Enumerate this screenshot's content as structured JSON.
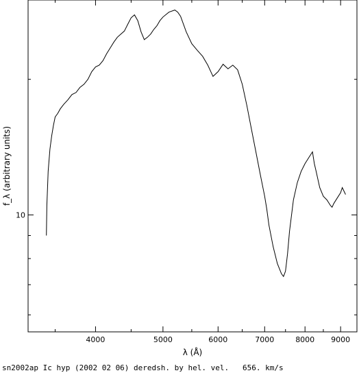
{
  "chart_data": {
    "type": "line",
    "title": "",
    "caption": "sn2002ap Ic hyp (2002 02 06) deredsh. by hel. vel.   656. km/s",
    "xlabel": "λ (Å)",
    "ylabel": "f_λ (arbitrary units)",
    "x_scale": "log",
    "y_scale": "log",
    "xlim": [
      3200,
      9500
    ],
    "ylim": [
      5.5,
      30
    ],
    "x_ticks": [
      {
        "value": 4000,
        "label": "4000"
      },
      {
        "value": 5000,
        "label": "5000"
      },
      {
        "value": 6000,
        "label": "6000"
      },
      {
        "value": 7000,
        "label": "7000"
      },
      {
        "value": 8000,
        "label": "8000"
      },
      {
        "value": 9000,
        "label": "9000"
      }
    ],
    "y_ticks": [
      {
        "value": 10,
        "label": "10"
      }
    ],
    "series": [
      {
        "name": "",
        "color": "#000000",
        "x": [
          3400,
          3405,
          3420,
          3440,
          3460,
          3480,
          3500,
          3530,
          3560,
          3600,
          3650,
          3700,
          3750,
          3800,
          3850,
          3900,
          3950,
          4000,
          4050,
          4100,
          4150,
          4200,
          4250,
          4300,
          4350,
          4400,
          4450,
          4500,
          4550,
          4600,
          4650,
          4700,
          4750,
          4800,
          4850,
          4900,
          4950,
          5000,
          5100,
          5200,
          5250,
          5300,
          5400,
          5500,
          5600,
          5700,
          5800,
          5900,
          6000,
          6100,
          6200,
          6300,
          6400,
          6500,
          6600,
          6700,
          6800,
          6900,
          7000,
          7050,
          7100,
          7200,
          7300,
          7400,
          7450,
          7500,
          7550,
          7600,
          7700,
          7800,
          7900,
          8000,
          8100,
          8200,
          8250,
          8300,
          8400,
          8500,
          8600,
          8700,
          8750,
          8800,
          8900,
          9000,
          9050,
          9100,
          9150
        ],
        "y": [
          9.0,
          10.5,
          12.5,
          14.0,
          15.0,
          15.8,
          16.5,
          16.8,
          17.2,
          17.6,
          18.0,
          18.5,
          18.7,
          19.2,
          19.5,
          20.0,
          20.8,
          21.3,
          21.5,
          22.0,
          22.8,
          23.5,
          24.2,
          24.8,
          25.2,
          25.6,
          26.5,
          27.4,
          27.8,
          27.0,
          25.5,
          24.5,
          24.8,
          25.2,
          25.8,
          26.3,
          27.0,
          27.5,
          28.2,
          28.5,
          28.2,
          27.6,
          25.5,
          24.0,
          23.2,
          22.5,
          21.5,
          20.3,
          20.8,
          21.6,
          21.1,
          21.5,
          21.0,
          19.5,
          17.5,
          15.5,
          13.8,
          12.3,
          11.0,
          10.3,
          9.5,
          8.5,
          7.8,
          7.4,
          7.3,
          7.5,
          8.2,
          9.2,
          10.8,
          11.8,
          12.5,
          13.0,
          13.4,
          13.8,
          13.0,
          12.5,
          11.5,
          11.0,
          10.8,
          10.5,
          10.4,
          10.6,
          10.9,
          11.2,
          11.5,
          11.3,
          11.1
        ]
      }
    ]
  }
}
